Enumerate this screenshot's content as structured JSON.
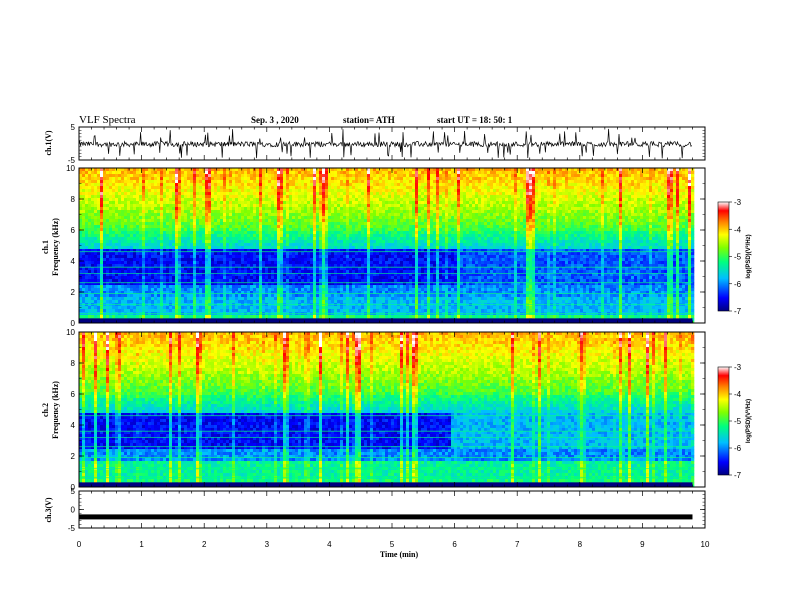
{
  "header": {
    "title": "VLF Spectra",
    "date": "Sep. 3 , 2020",
    "station": "station= ATH",
    "start": "start UT = 18: 50: 1"
  },
  "chart_data": [
    {
      "type": "line",
      "panel": "ch1-waveform",
      "ylabel": "ch.1(V)",
      "xlim": [
        0,
        10
      ],
      "ylim": [
        -5,
        5
      ],
      "yticks": [
        "5",
        "-5"
      ],
      "data_extent_min": [
        0,
        9.8
      ],
      "baseline_v": -0.2,
      "typical_range_v": [
        -2.5,
        1.5
      ],
      "color": "#000000"
    },
    {
      "type": "heatmap",
      "panel": "ch1-spectrogram",
      "ylabel": "ch.1\nFrequency (kHz)",
      "ylabel_line1": "ch.1",
      "ylabel_line2": "Frequency (kHz)",
      "xlim": [
        0,
        10
      ],
      "ylim": [
        0,
        10
      ],
      "yticks": [
        "0",
        "2",
        "4",
        "6",
        "8",
        "10"
      ],
      "data_extent_min": [
        0,
        9.8
      ],
      "colorbar": {
        "label": "log(PSD)(V²/Hz)",
        "range": [
          -7,
          -3
        ],
        "ticks": [
          "-3",
          "-4",
          "-5",
          "-6",
          "-7"
        ],
        "colormap": [
          "#00007f",
          "#0000ff",
          "#00bfff",
          "#00ff7f",
          "#7fff00",
          "#ffff00",
          "#ff7f00",
          "#ff0000",
          "#ffffff"
        ]
      }
    },
    {
      "type": "heatmap",
      "panel": "ch2-spectrogram",
      "ylabel_line1": "ch.2",
      "ylabel_line2": "Frequency (kHz)",
      "xlim": [
        0,
        10
      ],
      "ylim": [
        0,
        10
      ],
      "yticks": [
        "0",
        "2",
        "4",
        "6",
        "8",
        "10"
      ],
      "data_extent_min": [
        0,
        9.8
      ],
      "colorbar": {
        "label": "log(PSD)(V²/Hz)",
        "range": [
          -7,
          -3
        ],
        "ticks": [
          "-3",
          "-4",
          "-5",
          "-6",
          "-7"
        ]
      }
    },
    {
      "type": "line",
      "panel": "ch3-waveform",
      "ylabel": "ch.3(V)",
      "xlim": [
        0,
        10
      ],
      "ylim": [
        -5,
        5
      ],
      "yticks": [
        "5",
        "0",
        "-5"
      ],
      "data_extent_min": [
        0,
        9.8
      ],
      "baseline_v": -2.0,
      "color": "#000000"
    }
  ],
  "xaxis": {
    "label": "Time (min)",
    "ticks": [
      "0",
      "1",
      "2",
      "3",
      "4",
      "5",
      "6",
      "7",
      "8",
      "9",
      "10"
    ]
  }
}
